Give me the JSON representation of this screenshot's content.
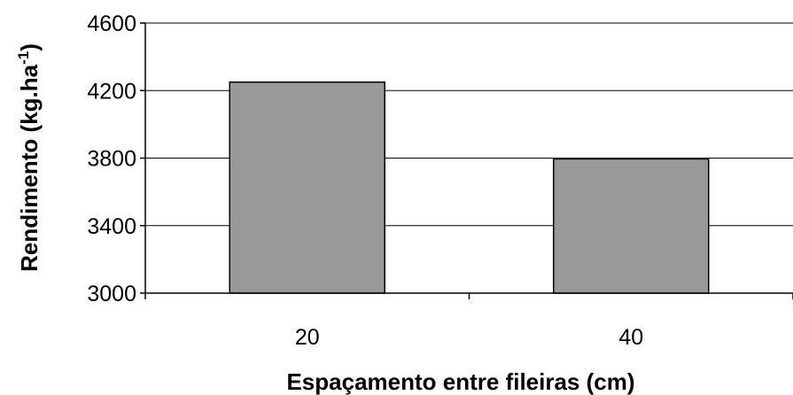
{
  "chart_data": {
    "type": "bar",
    "title": "",
    "xlabel": "Espaçamento entre fileiras (cm)",
    "ylabel_main": "Rendimento (kg.ha",
    "ylabel_sup": "-1",
    "ylabel_close": ")",
    "categories": [
      "20",
      "40"
    ],
    "values": [
      4250,
      3795
    ],
    "ylim": [
      3000,
      4600
    ],
    "yticks": [
      "3000",
      "3400",
      "3800",
      "4200",
      "4600"
    ],
    "grid": true,
    "bar_color": "#999999",
    "bar_stroke": "#000000"
  }
}
